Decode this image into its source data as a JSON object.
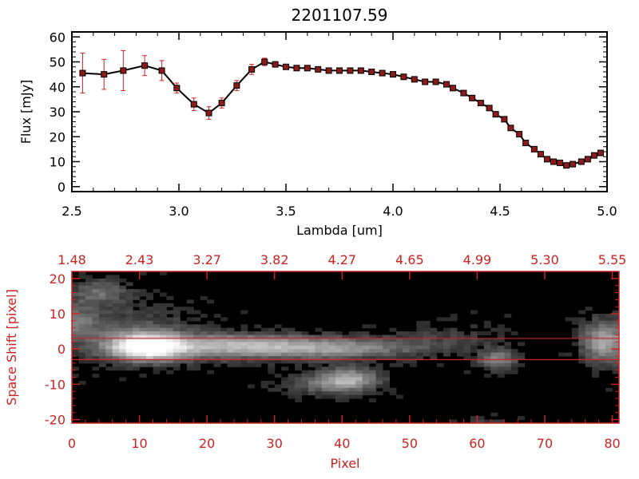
{
  "chart_data": [
    {
      "type": "line",
      "title": "2201107.59",
      "xlabel": "Lambda [um]",
      "ylabel": "Flux [mJy]",
      "xlim": [
        2.5,
        5.0
      ],
      "ylim": [
        -2,
        62
      ],
      "xticks": [
        "2.5",
        "3.0",
        "3.5",
        "4.0",
        "4.5",
        "5.0"
      ],
      "yticks": [
        "0",
        "10",
        "20",
        "30",
        "40",
        "50",
        "60"
      ],
      "grid": false,
      "line_color": "#000000",
      "marker_color": "#8b1a1a",
      "errorbar_color": "#cc2222",
      "series": [
        {
          "x": [
            2.55,
            2.65,
            2.74,
            2.84,
            2.92,
            2.99,
            3.07,
            3.14,
            3.2,
            3.27,
            3.34,
            3.4,
            3.45,
            3.5,
            3.55,
            3.6,
            3.65,
            3.7,
            3.75,
            3.8,
            3.85,
            3.9,
            3.95,
            4.0,
            4.05,
            4.1,
            4.15,
            4.2,
            4.25,
            4.28,
            4.33,
            4.37,
            4.41,
            4.45,
            4.48,
            4.52,
            4.55,
            4.59,
            4.62,
            4.66,
            4.69,
            4.72,
            4.75,
            4.78,
            4.81,
            4.84,
            4.88,
            4.91,
            4.94,
            4.97
          ],
          "y": [
            45.5,
            45,
            46.5,
            48.5,
            46.5,
            39.5,
            33,
            29.5,
            33.5,
            40.5,
            47,
            50,
            49,
            48,
            47.5,
            47.5,
            47,
            46.5,
            46.5,
            46.5,
            46.5,
            46,
            45.5,
            45,
            44,
            43,
            42,
            42,
            41,
            39.5,
            37.5,
            35.5,
            33.5,
            31.5,
            29,
            27,
            23.5,
            21,
            17.5,
            15,
            13,
            11,
            10,
            9.5,
            8.5,
            9,
            10,
            11,
            12.5,
            13.5
          ],
          "error": [
            8,
            6,
            8,
            4,
            4,
            2,
            2.5,
            2.5,
            2,
            2,
            2,
            1.5,
            1,
            0.8,
            0.8,
            0.8,
            0.8,
            0.8,
            0.8,
            0.8,
            0.8,
            0.8,
            0.8,
            0.8,
            0.8,
            0.8,
            0.8,
            0.8,
            0.8,
            0.8,
            0.8,
            0.8,
            0.8,
            0.8,
            0.8,
            0.8,
            0.8,
            0.8,
            0.8,
            0.8,
            0.8,
            0.8,
            0.8,
            0.8,
            0.8,
            0.8,
            0.8,
            0.8,
            0.8,
            1
          ]
        }
      ]
    },
    {
      "type": "heatmap",
      "xlabel": "Pixel",
      "ylabel": "Space Shift [pixel]",
      "xlim": [
        0,
        81
      ],
      "ylim": [
        -21,
        22
      ],
      "xticks": [
        "0",
        "10",
        "20",
        "30",
        "40",
        "50",
        "60",
        "70",
        "80"
      ],
      "yticks": [
        "-20",
        "-10",
        "0",
        "10",
        "20"
      ],
      "top_axis_ticks": [
        "1.48",
        "2.43",
        "3.27",
        "3.82",
        "4.27",
        "4.65",
        "4.99",
        "5.30",
        "5.55"
      ],
      "axis_color": "#cc2222",
      "background": "#000000",
      "aperture_lines": [
        3,
        -3
      ],
      "sources": [
        {
          "x": 11,
          "y": 0.5,
          "sx": 3.8,
          "sy": 2.6,
          "amp": 1.0
        },
        {
          "x": 24,
          "y": 0.8,
          "sx": 9,
          "sy": 2.3,
          "amp": 0.62
        },
        {
          "x": 40,
          "y": 0.2,
          "sx": 8,
          "sy": 2.0,
          "amp": 0.42
        },
        {
          "x": 8,
          "y": 5,
          "sx": 7,
          "sy": 5,
          "amp": 0.22
        },
        {
          "x": 4,
          "y": 16,
          "sx": 3,
          "sy": 2.5,
          "amp": 0.32
        },
        {
          "x": 41,
          "y": -8.5,
          "sx": 3,
          "sy": 2.2,
          "amp": 0.55
        },
        {
          "x": 37,
          "y": -10,
          "sx": 4,
          "sy": 2,
          "amp": 0.25
        },
        {
          "x": 63,
          "y": -3,
          "sx": 2,
          "sy": 2,
          "amp": 0.4
        },
        {
          "x": 79,
          "y": 2,
          "sx": 2.3,
          "sy": 4,
          "amp": 0.6
        },
        {
          "x": 0.5,
          "y": 8,
          "sx": 2,
          "sy": 3,
          "amp": 0.3
        },
        {
          "x": 55,
          "y": 3,
          "sx": 6,
          "sy": 3,
          "amp": 0.12
        },
        {
          "x": 62,
          "y": -21,
          "sx": 3,
          "sy": 1,
          "amp": 0.15
        }
      ]
    }
  ]
}
